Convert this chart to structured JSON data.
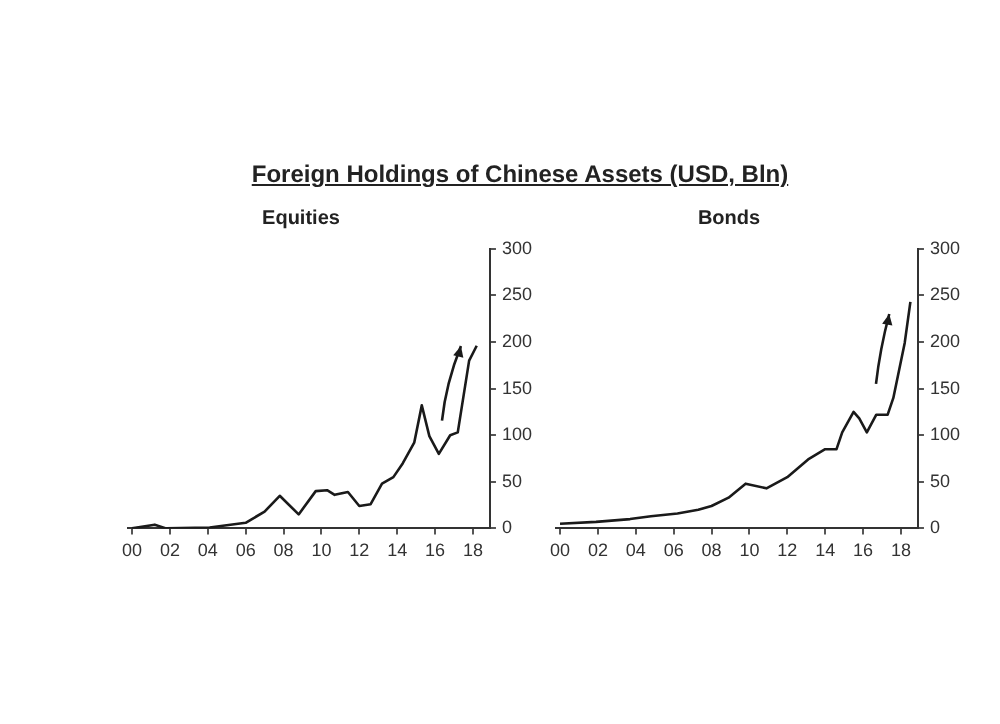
{
  "chart_data": [
    {
      "type": "line",
      "title": "Foreign Holdings of Chinese Assets (USD, Bln)",
      "subtitle": "Equities",
      "x": [
        2000,
        2001.2,
        2001.8,
        2004.1,
        2006,
        2007,
        2007.8,
        2008.8,
        2009.7,
        2010.3,
        2010.7,
        2011.4,
        2012,
        2012.6,
        2013.2,
        2013.8,
        2014.3,
        2014.9,
        2015.3,
        2015.7,
        2016.2,
        2016.8,
        2017.2,
        2017.8,
        2018.2
      ],
      "series": [
        {
          "color": "#1a1a1a",
          "values": [
            0,
            4,
            0,
            1,
            6,
            18,
            35,
            15,
            40,
            41,
            36,
            39,
            24,
            26,
            48,
            55,
            70,
            92,
            132,
            99,
            80,
            100,
            103,
            180,
            196
          ]
        }
      ],
      "xlim": [
        1999.8,
        2018.9
      ],
      "xticks": [
        {
          "value": 2000,
          "label": "00"
        },
        {
          "value": 2002,
          "label": "02"
        },
        {
          "value": 2004,
          "label": "04"
        },
        {
          "value": 2006,
          "label": "06"
        },
        {
          "value": 2008,
          "label": "08"
        },
        {
          "value": 2010,
          "label": "10"
        },
        {
          "value": 2012,
          "label": "12"
        },
        {
          "value": 2014,
          "label": "14"
        },
        {
          "value": 2016,
          "label": "16"
        },
        {
          "value": 2018,
          "label": "18"
        }
      ],
      "ylim": [
        0,
        300
      ],
      "yticks": [
        0,
        50,
        100,
        150,
        200,
        250,
        300
      ],
      "grid": false,
      "legend": false
    },
    {
      "type": "line",
      "subtitle": "Bonds",
      "x": [
        2000,
        2001.9,
        2003.7,
        2004.8,
        2006.2,
        2007.3,
        2008,
        2008.9,
        2009.8,
        2010.9,
        2012,
        2013.1,
        2014,
        2014.6,
        2014.9,
        2015.5,
        2015.8,
        2016.2,
        2016.7,
        2017.3,
        2017.6,
        2018.2,
        2018.5
      ],
      "series": [
        {
          "color": "#1a1a1a",
          "values": [
            5,
            7,
            10,
            13,
            16,
            20,
            24,
            33,
            48,
            43,
            55,
            74,
            85,
            85,
            103,
            125,
            118,
            103,
            122,
            122,
            140,
            199,
            243
          ]
        }
      ],
      "xlim": [
        1999.8,
        2018.9
      ],
      "xticks": [
        {
          "value": 2000,
          "label": "00"
        },
        {
          "value": 2002,
          "label": "02"
        },
        {
          "value": 2004,
          "label": "04"
        },
        {
          "value": 2006,
          "label": "06"
        },
        {
          "value": 2008,
          "label": "08"
        },
        {
          "value": 2010,
          "label": "10"
        },
        {
          "value": 2012,
          "label": "12"
        },
        {
          "value": 2014,
          "label": "14"
        },
        {
          "value": 2016,
          "label": "16"
        },
        {
          "value": 2018,
          "label": "18"
        }
      ],
      "ylim": [
        0,
        300
      ],
      "yticks": [
        0,
        50,
        100,
        150,
        200,
        250,
        300
      ],
      "grid": false,
      "legend": false
    }
  ]
}
